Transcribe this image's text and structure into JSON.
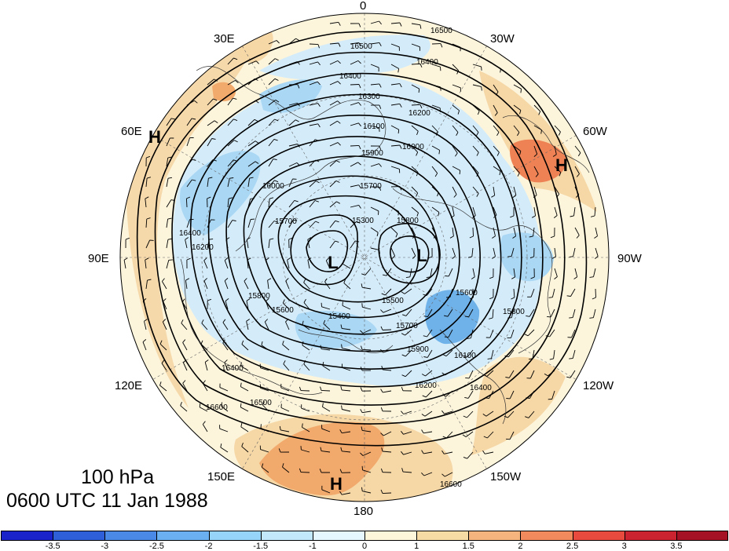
{
  "map": {
    "level_label": "100 hPa",
    "time_label": "0600 UTC 11 Jan 1988",
    "longitude_labels": {
      "n": "0",
      "nne": "30W",
      "ene": "60W",
      "e": "90W",
      "ese": "120W",
      "sse": "150W",
      "s": "180",
      "ssw": "150E",
      "wsw": "120E",
      "w": "90E",
      "wnw": "60E",
      "nnw": "30E"
    },
    "pressure_centers": [
      {
        "type": "H",
        "label": "H",
        "region": "west"
      },
      {
        "type": "H",
        "label": "H",
        "region": "east"
      },
      {
        "type": "H",
        "label": "H",
        "region": "south"
      },
      {
        "type": "L",
        "label": "L",
        "region": "center-left"
      },
      {
        "type": "L",
        "label": "L",
        "region": "center-right"
      }
    ],
    "contour_labels": [
      "16500",
      "16400",
      "16300",
      "16200",
      "16100",
      "16000",
      "15900",
      "15800",
      "15700",
      "15600",
      "15500",
      "15400",
      "15300",
      "16600"
    ],
    "colors": {
      "land_background": "#fcf5dc",
      "warm_light": "#f6d7a6",
      "warm_mid": "#f2a96c",
      "warm_strong": "#ee8255",
      "cool_light": "#d4ecfa",
      "cool_mid": "#a9d7f4",
      "cool_strong": "#6fb2ea"
    }
  },
  "colorbar": {
    "levels": [
      "-3.5",
      "-3",
      "-2.5",
      "-2",
      "-1.5",
      "-1",
      "0",
      "1",
      "1.5",
      "2",
      "2.5",
      "3",
      "3.5"
    ],
    "colors": [
      "#1a23c9",
      "#2f5ed9",
      "#4a8ae6",
      "#6bb0f0",
      "#96d4fa",
      "#c2e9fb",
      "#e6f7fd",
      "#fdf6da",
      "#f7dba5",
      "#f5b47e",
      "#f18a5c",
      "#e84a3e",
      "#cc2330",
      "#a51226"
    ]
  }
}
